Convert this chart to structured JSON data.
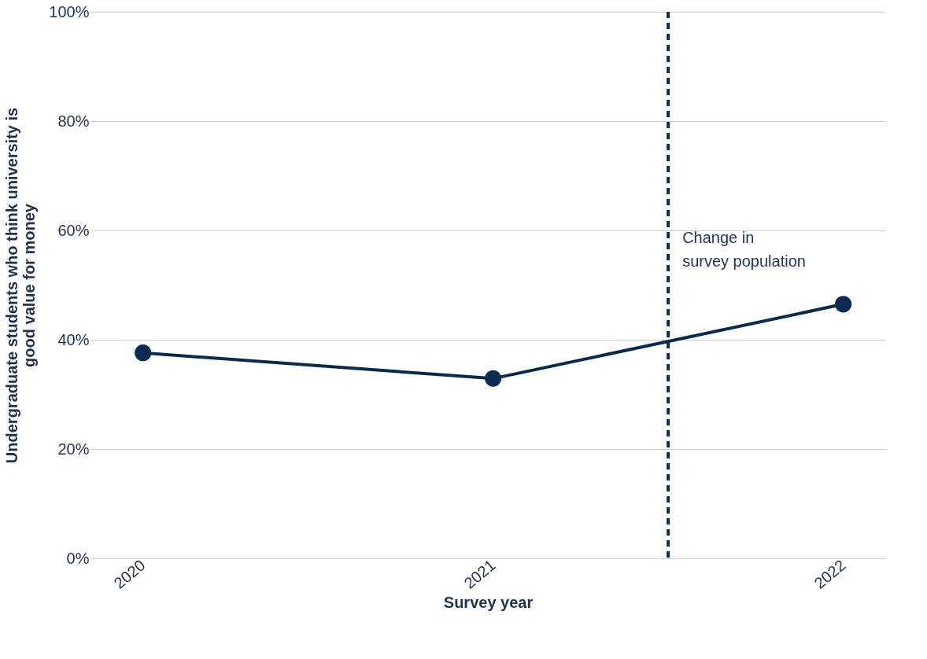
{
  "chart_data": {
    "type": "line",
    "xlabel": "Survey year",
    "ylabel": "Undergraduate students who think university is\ngood value for money",
    "x": [
      2020,
      2021,
      2022
    ],
    "series": [
      {
        "color": "#0b2a4f",
        "values": [
          37.6,
          32.9,
          46.5
        ]
      }
    ],
    "xlim": [
      2019.85,
      2022.12
    ],
    "xticks": [
      2020,
      2021,
      2022
    ],
    "ylim": [
      0,
      100
    ],
    "yticks": [
      {
        "value": 0,
        "label": "0%"
      },
      {
        "value": 20,
        "label": "20%"
      },
      {
        "value": 40,
        "label": "40%"
      },
      {
        "value": 60,
        "label": "60%"
      },
      {
        "value": 80,
        "label": "80%"
      },
      {
        "value": 100,
        "label": "100%"
      }
    ],
    "ref_lines": [
      {
        "axis": "x",
        "value": 2021.5,
        "color": "#0b2a4f",
        "line_style": "dashed"
      }
    ],
    "annotations": [
      {
        "text": "Change in\nsurvey population",
        "x": 2021.5,
        "y": 60
      }
    ],
    "grid": "y",
    "marker": "circle",
    "line_style": "solid"
  }
}
